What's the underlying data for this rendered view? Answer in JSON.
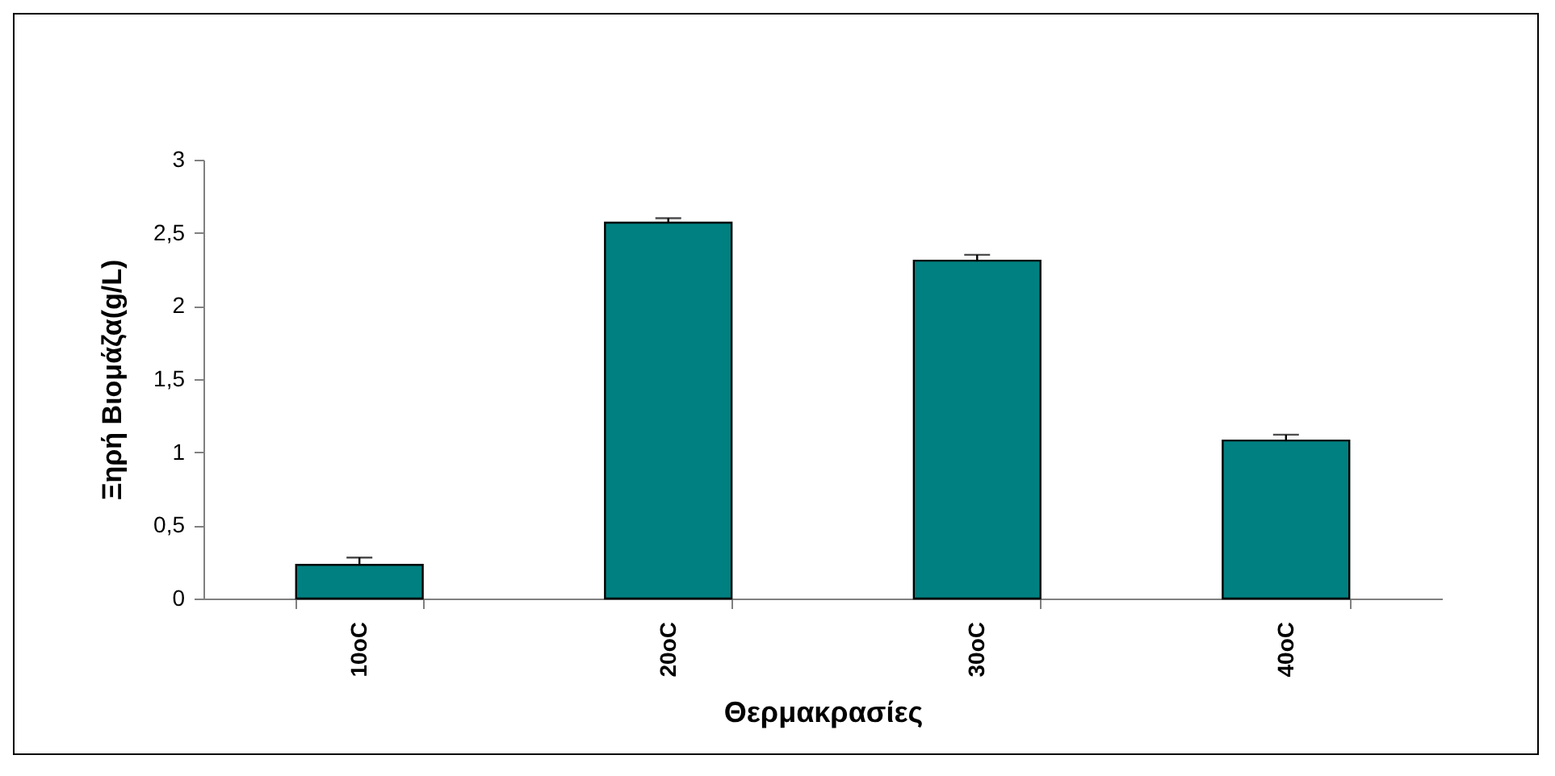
{
  "chart_data": {
    "type": "bar",
    "xlabel": "Θερμακρασίες",
    "ylabel": "Ξηρή Βιομάζα(g/L)",
    "categories": [
      "10oC",
      "20oC",
      "30oC",
      "40oC"
    ],
    "values": [
      0.23,
      2.57,
      2.31,
      1.08
    ],
    "errors": [
      [
        0.23,
        0.28
      ],
      [
        2.57,
        2.6
      ],
      [
        2.31,
        2.35
      ],
      [
        1.08,
        1.12
      ]
    ],
    "color": "#008080",
    "ylim": [
      0,
      3
    ],
    "yticks": [
      0,
      {
        "value": 0.5,
        "label": "0,5"
      },
      1,
      {
        "value": 1.5,
        "label": "1,5"
      },
      2,
      {
        "value": 2.5,
        "label": "2,5"
      },
      3
    ],
    "grid": false
  }
}
